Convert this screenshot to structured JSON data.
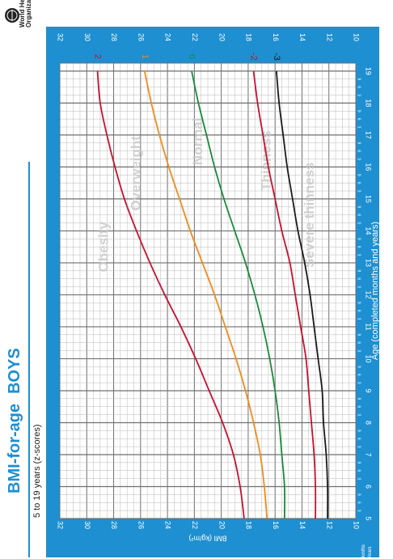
{
  "header": {
    "title": "BMI-for-age",
    "sex": "BOYS",
    "subtitle": "5 to 19 years (z-scores)"
  },
  "org": {
    "name_line1": "World Health",
    "name_line2": "Organization"
  },
  "footer": {
    "months_label": "Months",
    "years_label": "Years"
  },
  "colors": {
    "panel": "#1e8fd0",
    "chart_bg": "#ffffff",
    "grid_minor": "#b8b8b8",
    "grid_major": "#6f6f6f",
    "title": "#1e8fd0",
    "z2": "#c8102e",
    "z1": "#f08a1c",
    "z0": "#1a8a3c",
    "zm2": "#c8102e",
    "zm3": "#1a1a1a"
  },
  "chart_data": {
    "type": "line",
    "orientation": "rotated-90-clockwise",
    "xlabel": "Age (completed months and years)",
    "ylabel": "BMI (kg/m²)",
    "xlim": [
      5,
      19.25
    ],
    "ylim": [
      10,
      32
    ],
    "age_ticks": [
      5,
      6,
      7,
      8,
      9,
      10,
      11,
      12,
      13,
      14,
      15,
      16,
      17,
      18,
      19
    ],
    "month_ticks": [
      3,
      6,
      9
    ],
    "bmi_ticks": [
      10,
      12,
      14,
      16,
      18,
      20,
      22,
      24,
      26,
      28,
      30,
      32
    ],
    "x": [
      5,
      6,
      7,
      8,
      9,
      10,
      11,
      12,
      13,
      14,
      15,
      16,
      17,
      18,
      19
    ],
    "series": [
      {
        "name": "2",
        "color_key": "z2",
        "values": [
          18.3,
          18.6,
          19.1,
          19.9,
          20.9,
          21.9,
          23.0,
          24.2,
          25.3,
          26.3,
          27.2,
          27.9,
          28.5,
          29.0,
          29.2
        ]
      },
      {
        "name": "1",
        "color_key": "z1",
        "values": [
          16.6,
          16.8,
          17.1,
          17.6,
          18.2,
          18.9,
          19.7,
          20.5,
          21.4,
          22.3,
          23.1,
          23.9,
          24.6,
          25.2,
          25.7
        ]
      },
      {
        "name": "0",
        "color_key": "z0",
        "values": [
          15.3,
          15.3,
          15.5,
          15.7,
          16.0,
          16.4,
          16.9,
          17.5,
          18.2,
          19.0,
          19.8,
          20.5,
          21.1,
          21.7,
          22.2
        ]
      },
      {
        "name": "-2",
        "color_key": "zm2",
        "values": [
          13.0,
          13.0,
          13.1,
          13.3,
          13.5,
          13.7,
          14.1,
          14.5,
          14.9,
          15.5,
          16.0,
          16.5,
          16.9,
          17.3,
          17.6
        ]
      },
      {
        "name": "-3",
        "color_key": "zm3",
        "values": [
          12.1,
          12.1,
          12.2,
          12.4,
          12.5,
          12.8,
          13.1,
          13.4,
          13.8,
          14.3,
          14.7,
          15.1,
          15.4,
          15.7,
          15.9
        ]
      }
    ],
    "annotations": [
      {
        "text": "Obesity",
        "age": 13.5,
        "bmi": 28.7
      },
      {
        "text": "Overweight",
        "age": 15.8,
        "bmi": 26.3
      },
      {
        "text": "Normal",
        "age": 16.8,
        "bmi": 21.7
      },
      {
        "text": "Thinness",
        "age": 16.2,
        "bmi": 16.6
      },
      {
        "text": "Severe thinness",
        "age": 14.5,
        "bmi": 13.4
      }
    ]
  }
}
